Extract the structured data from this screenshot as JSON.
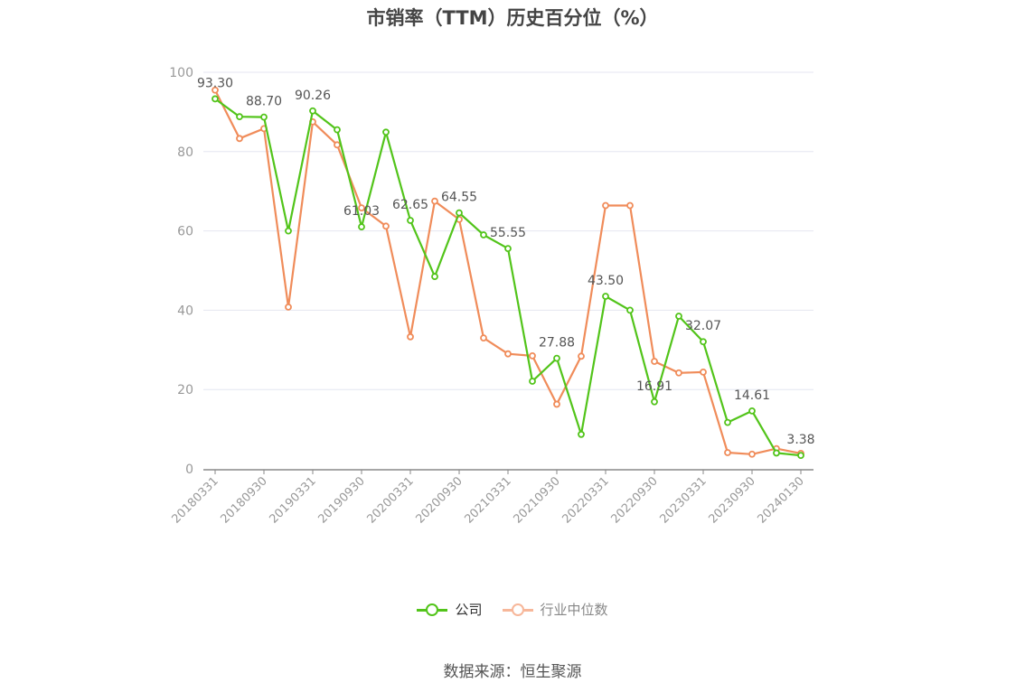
{
  "title": "市销率（TTM）历史百分位（%）",
  "source": "数据来源：恒生聚源",
  "colors": {
    "company": "#52c41a",
    "industry": "#f08c5a",
    "industry_legend": "#f7b79a"
  },
  "chart_data": {
    "type": "line",
    "title": "市销率（TTM）历史百分位（%）",
    "ylim": [
      0,
      100
    ],
    "yticks": [
      0,
      20,
      40,
      60,
      80,
      100
    ],
    "grid": true,
    "legend_position": "bottom",
    "x": [
      "20180331",
      "20180630",
      "20180930",
      "20181231",
      "20190331",
      "20190630",
      "20190930",
      "20191231",
      "20200331",
      "20200630",
      "20200930",
      "20201231",
      "20210331",
      "20210630",
      "20210930",
      "20211231",
      "20220331",
      "20220630",
      "20220930",
      "20221231",
      "20230331",
      "20230630",
      "20230930",
      "20231231",
      "20240130"
    ],
    "x_tick_labels": [
      "20180331",
      "20180930",
      "20190331",
      "20190930",
      "20200331",
      "20200930",
      "20210331",
      "20210930",
      "20220331",
      "20220930",
      "20230331",
      "20230930",
      "20240130"
    ],
    "series": [
      {
        "name": "公司",
        "values": [
          93.3,
          88.8,
          88.7,
          60.0,
          90.26,
          85.5,
          61.03,
          84.9,
          62.65,
          48.5,
          64.55,
          59.0,
          55.55,
          22.1,
          27.88,
          8.7,
          43.5,
          40.0,
          16.91,
          38.5,
          32.07,
          11.7,
          14.61,
          4.0,
          3.38
        ],
        "labels": [
          "93.30",
          null,
          "88.70",
          null,
          "90.26",
          null,
          "61.03",
          null,
          "62.65",
          null,
          "64.55",
          null,
          "55.55",
          null,
          "27.88",
          null,
          "43.50",
          null,
          "16.91",
          null,
          "32.07",
          null,
          "14.61",
          null,
          "3.38"
        ]
      },
      {
        "name": "行业中位数",
        "values": [
          95.5,
          83.3,
          85.8,
          40.8,
          87.5,
          81.7,
          65.8,
          61.2,
          33.3,
          67.5,
          62.9,
          33.0,
          29.0,
          28.5,
          16.3,
          28.4,
          66.4,
          66.4,
          27.1,
          24.2,
          24.4,
          4.1,
          3.7,
          5.1,
          3.9
        ]
      }
    ]
  }
}
